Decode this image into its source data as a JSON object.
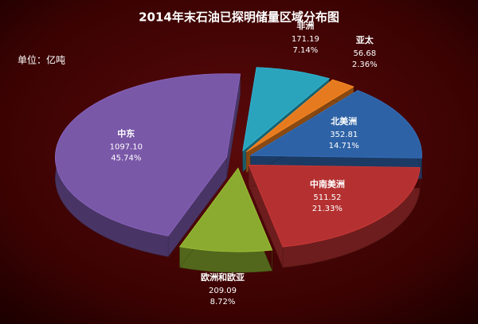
{
  "chart_data": {
    "type": "pie",
    "title": "2014年末石油已探明储量区域分布图",
    "unit_label": "单位：亿吨",
    "categories": [
      "非洲",
      "亚太",
      "北美洲",
      "中南美洲",
      "欧洲和欧亚",
      "中东"
    ],
    "values": [
      171.19,
      56.68,
      352.81,
      511.52,
      209.09,
      1097.1
    ],
    "value_labels": [
      "171.19",
      "56.68",
      "352.81",
      "511.52",
      "209.09",
      "1097.10"
    ],
    "percent_labels": [
      "7.14%",
      "2.36%",
      "14.71%",
      "21.33%",
      "8.72%",
      "45.74%"
    ],
    "colors": [
      "#2aa3bd",
      "#e57a1f",
      "#2e62a6",
      "#b53131",
      "#8aab2f",
      "#7a58a8"
    ]
  }
}
